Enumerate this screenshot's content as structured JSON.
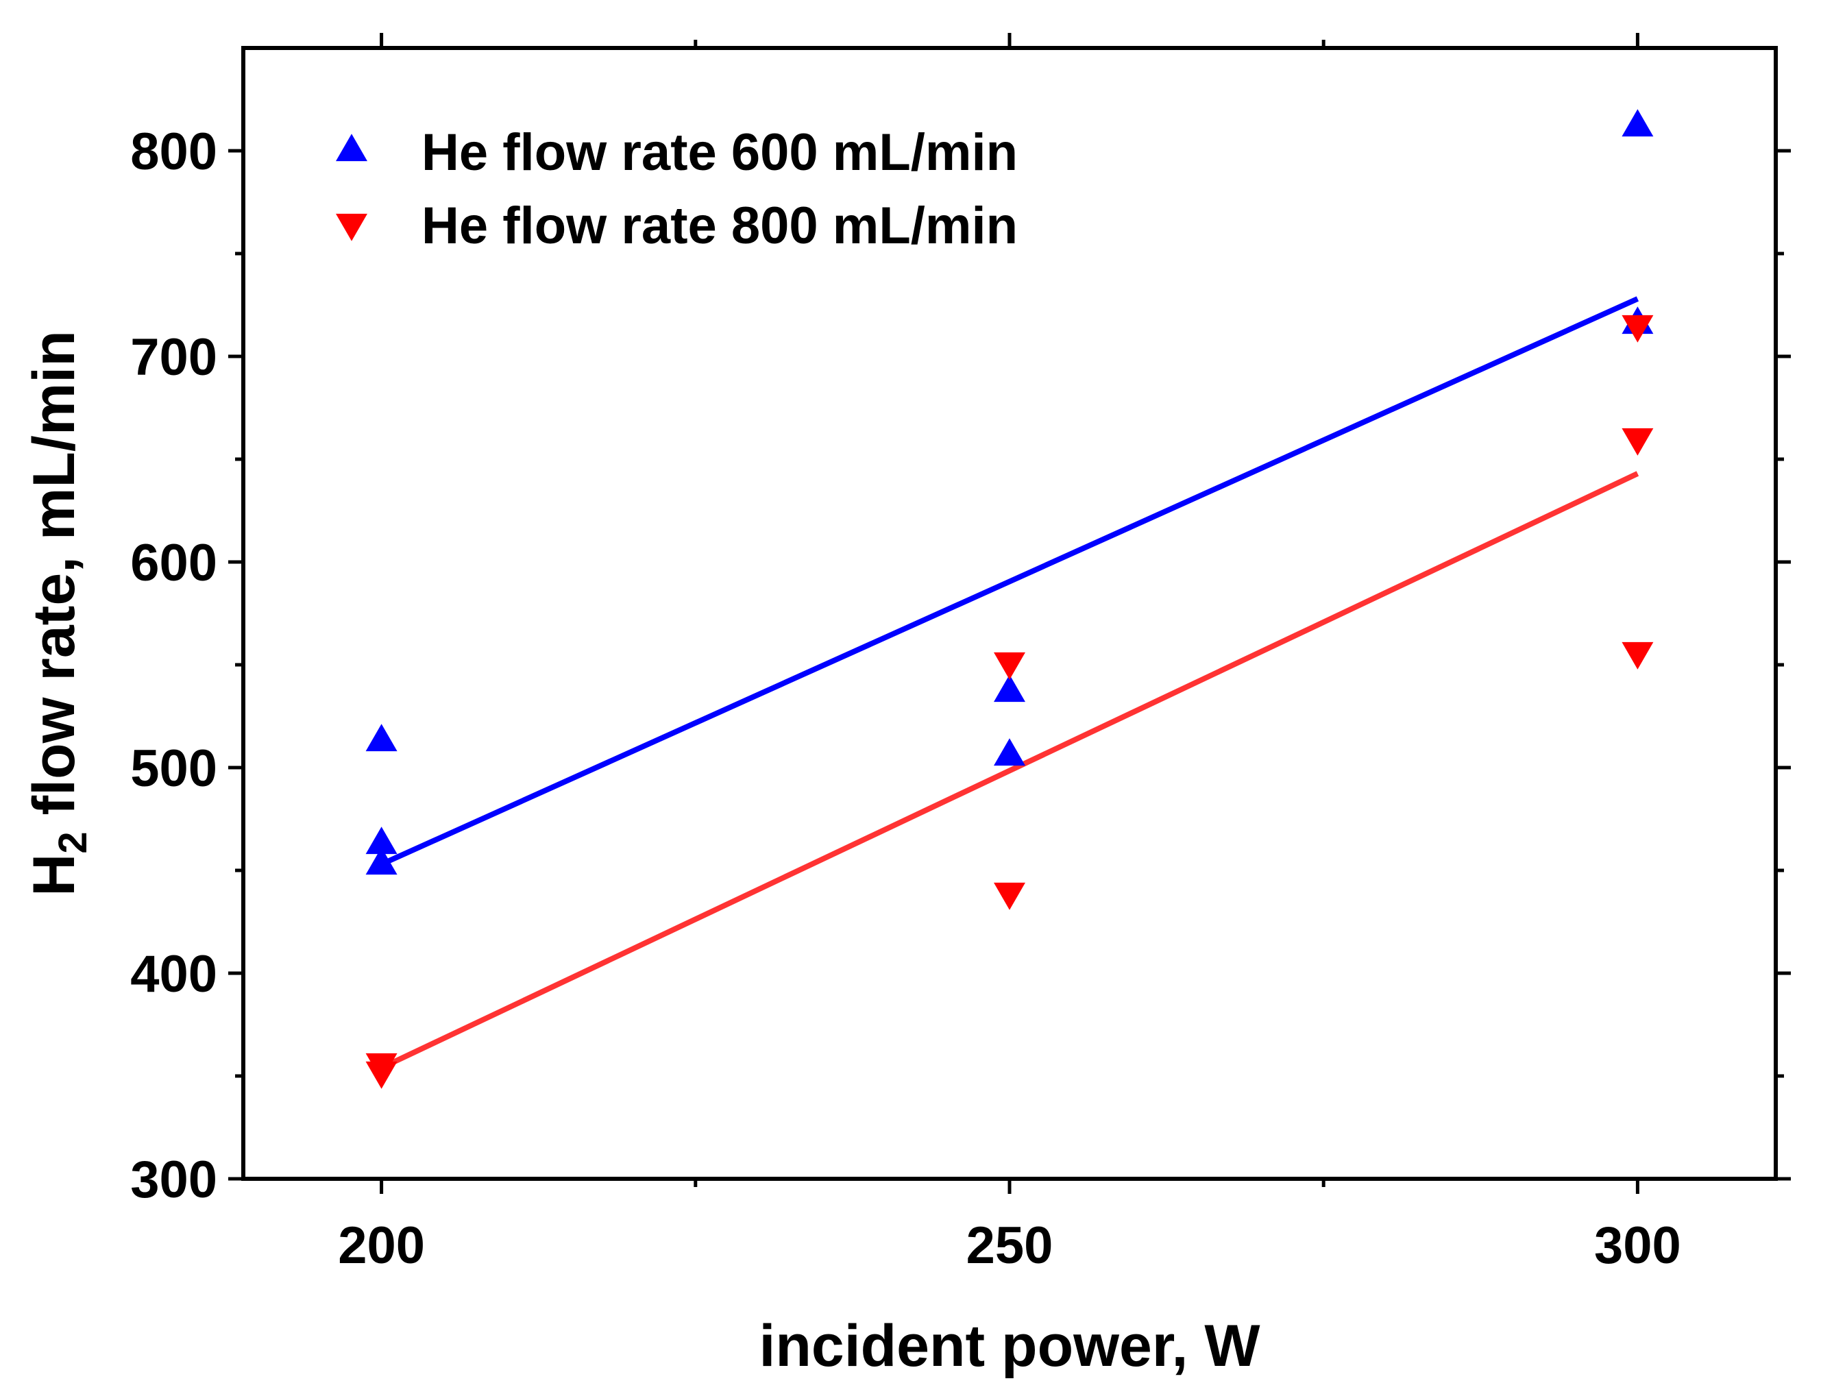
{
  "chart_data": {
    "type": "scatter",
    "xlabel": "incident power, W",
    "ylabel": {
      "prefix": "H",
      "subscript": "2",
      "suffix": " flow rate, mL/min"
    },
    "xlim": [
      189,
      311
    ],
    "ylim": [
      300,
      850
    ],
    "xticks": [
      200,
      250,
      300
    ],
    "xminor": [
      225,
      275
    ],
    "yticks": [
      300,
      400,
      500,
      600,
      700,
      800
    ],
    "yminor": [
      350,
      450,
      550,
      650,
      750
    ],
    "grid": false,
    "legend_position": "top-left",
    "series": [
      {
        "name": "He flow rate 600 mL/min",
        "color": "#0000ff",
        "line_color": "#0000ff",
        "marker": "triangle-up",
        "points": [
          [
            200,
            513
          ],
          [
            200,
            463
          ],
          [
            200,
            453
          ],
          [
            250,
            537
          ],
          [
            250,
            506
          ],
          [
            300,
            812
          ],
          [
            300,
            716
          ]
        ],
        "fit": [
          [
            200,
            453
          ],
          [
            300,
            728
          ]
        ]
      },
      {
        "name": "He flow rate 800 mL/min",
        "color": "#ff0000",
        "line_color": "#ff3333",
        "marker": "triangle-down",
        "points": [
          [
            200,
            356
          ],
          [
            200,
            352
          ],
          [
            250,
            551
          ],
          [
            250,
            439
          ],
          [
            300,
            715
          ],
          [
            300,
            660
          ],
          [
            300,
            556
          ]
        ],
        "fit": [
          [
            200,
            354
          ],
          [
            300,
            643
          ]
        ]
      }
    ]
  }
}
